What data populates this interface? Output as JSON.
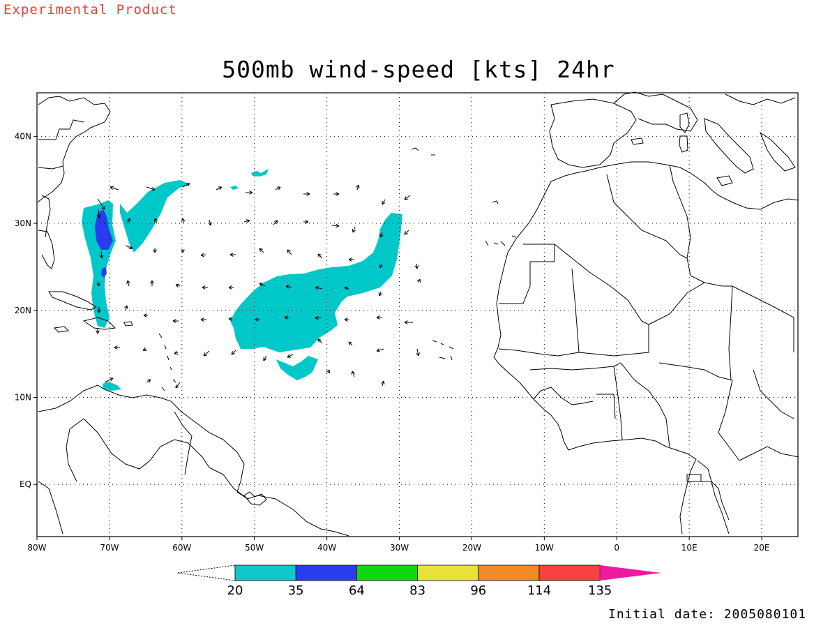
{
  "header": {
    "experimental_label": "Experimental Product",
    "title": "500mb wind-speed [kts] 24hr"
  },
  "footer": {
    "initial_date": "Initial date: 2005080101"
  },
  "map": {
    "projection": "cylindrical",
    "lon_range": [
      -80,
      25
    ],
    "lat_range": [
      -6,
      45
    ],
    "lon_ticks": [
      {
        "v": -80,
        "label": "80W"
      },
      {
        "v": -70,
        "label": "70W"
      },
      {
        "v": -60,
        "label": "60W"
      },
      {
        "v": -50,
        "label": "50W"
      },
      {
        "v": -40,
        "label": "40W"
      },
      {
        "v": -30,
        "label": "30W"
      },
      {
        "v": -20,
        "label": "20W"
      },
      {
        "v": -10,
        "label": "10W"
      },
      {
        "v": 0,
        "label": "0"
      },
      {
        "v": 10,
        "label": "10E"
      },
      {
        "v": 20,
        "label": "20E"
      }
    ],
    "lat_ticks": [
      {
        "v": 40,
        "label": "40N"
      },
      {
        "v": 30,
        "label": "30N"
      },
      {
        "v": 20,
        "label": "20N"
      },
      {
        "v": 10,
        "label": "10N"
      },
      {
        "v": 0,
        "label": "EQ"
      }
    ],
    "grid": "dotted",
    "coastline_color": "#000000"
  },
  "colorbar": {
    "labels": [
      "20",
      "35",
      "64",
      "83",
      "96",
      "114",
      "135"
    ],
    "colors": [
      "#10c8c8",
      "#2a3cf0",
      "#10d810",
      "#e6e23a",
      "#f08a28",
      "#f84040",
      "#ee1aa0"
    ]
  },
  "shading": {
    "fill_colors": {
      "ge20": "#00c8c8",
      "ge35": "#2a3cf0"
    }
  }
}
